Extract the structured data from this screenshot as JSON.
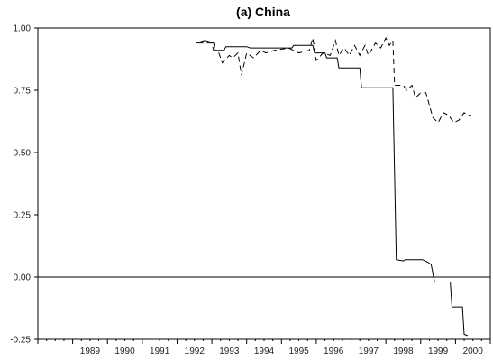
{
  "chart_data": {
    "type": "line",
    "title": "(a) China",
    "xlabel": "",
    "ylabel": "",
    "xlim": [
      1988.0,
      2001.0
    ],
    "ylim": [
      -0.25,
      1.0
    ],
    "y_ticks": [
      "1.00",
      "0.75",
      "0.50",
      "0.25",
      "0.00",
      "-0.25"
    ],
    "y_tick_values": [
      1.0,
      0.75,
      0.5,
      0.25,
      0.0,
      -0.25
    ],
    "x_ticks": [
      "1989",
      "1990",
      "1991",
      "1992",
      "1993",
      "1994",
      "1995",
      "1996",
      "1997",
      "1998",
      "1999",
      "2000"
    ],
    "x_tick_values": [
      1989.5,
      1990.5,
      1991.5,
      1992.5,
      1993.5,
      1994.5,
      1995.5,
      1996.5,
      1997.5,
      1998.5,
      1999.5,
      2000.5
    ],
    "grid": false,
    "reference_line": 0.0,
    "series": [
      {
        "style": "solid",
        "points": [
          [
            1992.55,
            0.94
          ],
          [
            1992.8,
            0.95
          ],
          [
            1993.05,
            0.94
          ],
          [
            1993.1,
            0.91
          ],
          [
            1993.35,
            0.91
          ],
          [
            1993.4,
            0.925
          ],
          [
            1994.0,
            0.925
          ],
          [
            1994.1,
            0.92
          ],
          [
            1995.3,
            0.92
          ],
          [
            1995.35,
            0.93
          ],
          [
            1995.9,
            0.93
          ],
          [
            1995.95,
            0.9
          ],
          [
            1996.25,
            0.9
          ],
          [
            1996.3,
            0.88
          ],
          [
            1996.6,
            0.88
          ],
          [
            1996.65,
            0.84
          ],
          [
            1997.25,
            0.84
          ],
          [
            1997.3,
            0.76
          ],
          [
            1998.2,
            0.76
          ],
          [
            1998.3,
            0.07
          ],
          [
            1998.5,
            0.065
          ],
          [
            1998.55,
            0.07
          ],
          [
            1999.05,
            0.07
          ],
          [
            1999.2,
            0.06
          ],
          [
            1999.3,
            0.05
          ],
          [
            1999.4,
            -0.02
          ],
          [
            1999.85,
            -0.02
          ],
          [
            1999.9,
            -0.12
          ],
          [
            2000.1,
            -0.12
          ],
          [
            2000.2,
            -0.12
          ],
          [
            2000.25,
            -0.23
          ],
          [
            2000.35,
            -0.235
          ]
        ]
      },
      {
        "style": "dashed",
        "points": [
          [
            1992.6,
            0.94
          ],
          [
            1993.0,
            0.94
          ],
          [
            1993.05,
            0.91
          ],
          [
            1993.2,
            0.9
          ],
          [
            1993.3,
            0.86
          ],
          [
            1993.5,
            0.89
          ],
          [
            1993.6,
            0.88
          ],
          [
            1993.75,
            0.9
          ],
          [
            1993.85,
            0.81
          ],
          [
            1994.0,
            0.9
          ],
          [
            1994.2,
            0.88
          ],
          [
            1994.4,
            0.91
          ],
          [
            1994.55,
            0.9
          ],
          [
            1994.8,
            0.91
          ],
          [
            1995.2,
            0.92
          ],
          [
            1995.5,
            0.9
          ],
          [
            1995.8,
            0.91
          ],
          [
            1995.9,
            0.96
          ],
          [
            1996.0,
            0.87
          ],
          [
            1996.2,
            0.9
          ],
          [
            1996.4,
            0.89
          ],
          [
            1996.55,
            0.95
          ],
          [
            1996.65,
            0.89
          ],
          [
            1996.8,
            0.92
          ],
          [
            1996.95,
            0.89
          ],
          [
            1997.1,
            0.93
          ],
          [
            1997.25,
            0.89
          ],
          [
            1997.4,
            0.93
          ],
          [
            1997.5,
            0.89
          ],
          [
            1997.7,
            0.94
          ],
          [
            1997.85,
            0.92
          ],
          [
            1998.0,
            0.96
          ],
          [
            1998.1,
            0.93
          ],
          [
            1998.2,
            0.95
          ],
          [
            1998.25,
            0.77
          ],
          [
            1998.5,
            0.77
          ],
          [
            1998.6,
            0.75
          ],
          [
            1998.75,
            0.77
          ],
          [
            1998.85,
            0.72
          ],
          [
            1999.0,
            0.74
          ],
          [
            1999.15,
            0.74
          ],
          [
            1999.35,
            0.64
          ],
          [
            1999.5,
            0.62
          ],
          [
            1999.65,
            0.66
          ],
          [
            1999.8,
            0.65
          ],
          [
            1999.95,
            0.62
          ],
          [
            2000.1,
            0.63
          ],
          [
            2000.25,
            0.66
          ],
          [
            2000.35,
            0.65
          ],
          [
            2000.45,
            0.65
          ]
        ]
      }
    ]
  }
}
